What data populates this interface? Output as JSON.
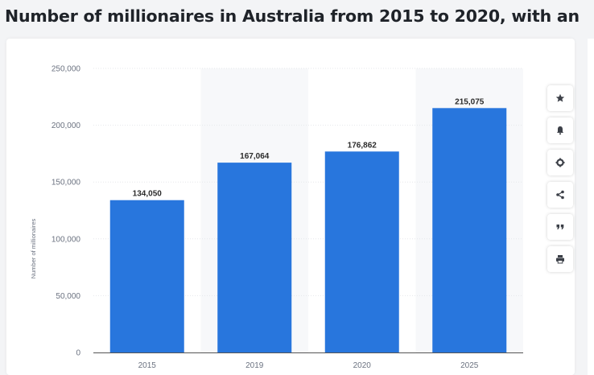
{
  "page": {
    "title": "Number of millionaires in Australia from 2015 to 2020, with an"
  },
  "chart_data": {
    "type": "bar",
    "categories": [
      "2015",
      "2019",
      "2020",
      "2025"
    ],
    "values": [
      134050,
      167064,
      176862,
      215075
    ],
    "value_labels": [
      "134,050",
      "167,064",
      "176,862",
      "215,075"
    ],
    "ylabel": "Number of millionaires",
    "ylim": [
      0,
      250000
    ],
    "yticks": [
      0,
      50000,
      100000,
      150000,
      200000,
      250000
    ],
    "ytick_labels": [
      "0",
      "50,000",
      "100,000",
      "150,000",
      "200,000",
      "250,000"
    ],
    "grid": true,
    "bar_color": "#2876dd",
    "alt_band_color": "#f7f8fa"
  },
  "toolbar": {
    "buttons": [
      {
        "icon": "star-icon"
      },
      {
        "icon": "bell-icon"
      },
      {
        "icon": "gear-icon"
      },
      {
        "icon": "share-icon"
      },
      {
        "icon": "quote-icon"
      },
      {
        "icon": "print-icon"
      }
    ]
  }
}
